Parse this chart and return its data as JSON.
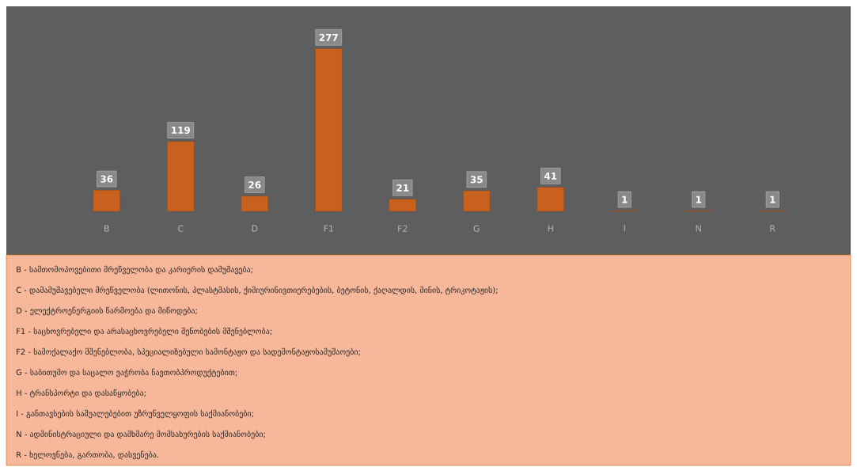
{
  "chart_data": {
    "type": "bar",
    "categories": [
      "B",
      "C",
      "D",
      "F1",
      "F2",
      "G",
      "H",
      "I",
      "N",
      "R"
    ],
    "values": [
      36,
      119,
      26,
      277,
      21,
      35,
      41,
      1,
      1,
      1
    ],
    "color": "#c8601e",
    "data_labels": true,
    "annotations": [
      "B - სამთომოპოვებითი მრეწველობა და კარიერის დამუშავება;",
      "C - დამამუშავებელი მრეწველობა (ლითონის, პლასტმასის, ქიმიურინივთიერებების, ბეტონის, ქაღალდის, მინის, ტრიკოტაჟის);",
      "D - ელექტროენერგიის წარმოება და მიწოდება;",
      "F1 - საცხოვრებელი და არასაცხოვრებელი შენობების მშენებლობა;",
      "F2 - სამოქალაქო მშენებლობა, სპეციალიზებული სამონტაჟო და სადემონტაჟოსამუშაოები;",
      "G - საბითუმო და საცალო ვაჭრობა ნავთობპროდუქტებით;",
      "H - ტრანსპორტი და დასაწყობება;",
      "I - განთავსების საშუალებებით უზრუნველყოფის საქმიანობები;",
      "N - ადმინისტრაციული და დამხმარე მომსახურების საქმიანობები;",
      "R - ხელოვნება, გართობა, დასვენება."
    ]
  }
}
